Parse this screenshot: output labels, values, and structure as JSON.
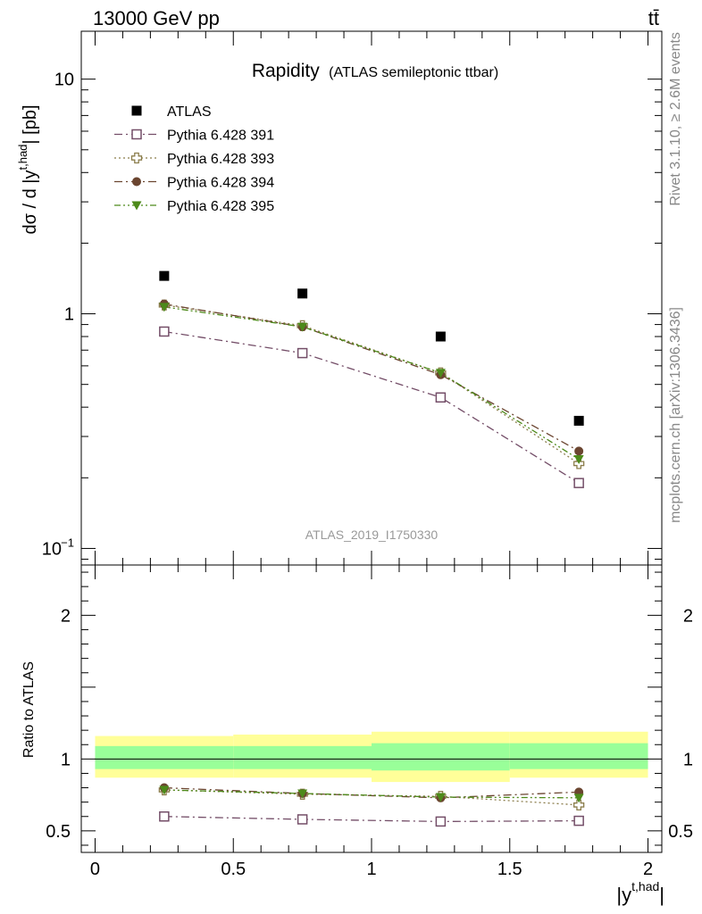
{
  "header": {
    "energy_label": "13000 GeV pp",
    "process_label": "tt̄"
  },
  "side_labels": {
    "rivet": "Rivet 3.1.10, ≥ 2.6M events",
    "source": "mcplots.cern.ch [arXiv:1306.3436]"
  },
  "chart_data": [
    {
      "type": "line",
      "title": "Rapidity",
      "subtitle": "(ATLAS semileptonic ttbar)",
      "watermark": "ATLAS_2019_I1750330",
      "ylabel": "dσ / d |y^{t,had}| [pb]",
      "xlabel": "|y^{t,had}|",
      "yscale": "log",
      "ylim": [
        0.085,
        16
      ],
      "xlim": [
        -0.05,
        2.05
      ],
      "yticks": [
        {
          "value": 0.1,
          "base": "10",
          "exp": "−1"
        },
        {
          "value": 1,
          "label": "1"
        },
        {
          "value": 10,
          "label": "10"
        }
      ],
      "x": [
        0.25,
        0.75,
        1.25,
        1.75
      ],
      "series": [
        {
          "name": "ATLAS",
          "values": [
            1.45,
            1.22,
            0.8,
            0.35
          ],
          "color": "#000000",
          "marker": "filled-square",
          "line": "none"
        },
        {
          "name": "Pythia 6.428 391",
          "values": [
            0.84,
            0.68,
            0.44,
            0.19
          ],
          "color": "#744e68",
          "marker": "open-square",
          "line": "dash-dot"
        },
        {
          "name": "Pythia 6.428 393",
          "values": [
            1.09,
            0.89,
            0.56,
            0.23
          ],
          "color": "#8b7d4b",
          "marker": "open-cross",
          "line": "dotted"
        },
        {
          "name": "Pythia 6.428 394",
          "values": [
            1.1,
            0.88,
            0.55,
            0.26
          ],
          "color": "#6b4530",
          "marker": "filled-circle",
          "line": "dash-dot"
        },
        {
          "name": "Pythia 6.428 395",
          "values": [
            1.07,
            0.88,
            0.56,
            0.24
          ],
          "color": "#4d8a1a",
          "marker": "filled-triangle-down",
          "line": "dash-dot-dot"
        }
      ]
    },
    {
      "type": "line",
      "ylabel": "Ratio to ATLAS",
      "xlabel": "|y^{t,had}|",
      "ylim": [
        0.35,
        2.35
      ],
      "xlim": [
        -0.05,
        2.05
      ],
      "yticks": [
        0.5,
        1,
        2
      ],
      "xticks": [
        0,
        0.5,
        1,
        1.5,
        2
      ],
      "xtick_labels": [
        "0",
        "0.5",
        "1",
        "1.5",
        "2"
      ],
      "bins": [
        [
          0,
          0.5
        ],
        [
          0.5,
          1.0
        ],
        [
          1.0,
          1.5
        ],
        [
          1.5,
          2.0
        ]
      ],
      "band_outer": [
        [
          0.87,
          1.16
        ],
        [
          0.87,
          1.17
        ],
        [
          0.84,
          1.19
        ],
        [
          0.87,
          1.19
        ]
      ],
      "band_inner": [
        [
          0.93,
          1.09
        ],
        [
          0.93,
          1.09
        ],
        [
          0.92,
          1.11
        ],
        [
          0.93,
          1.11
        ]
      ],
      "band_colors": {
        "outer": "#ffff99",
        "inner": "#99ff99"
      },
      "x": [
        0.25,
        0.75,
        1.25,
        1.75
      ],
      "series": [
        {
          "name": "Pythia 6.428 391",
          "values": [
            0.6,
            0.58,
            0.565,
            0.57
          ],
          "color": "#744e68",
          "marker": "open-square",
          "line": "dash-dot"
        },
        {
          "name": "Pythia 6.428 393",
          "values": [
            0.785,
            0.755,
            0.74,
            0.68
          ],
          "color": "#8b7d4b",
          "marker": "open-cross",
          "line": "dotted"
        },
        {
          "name": "Pythia 6.428 394",
          "values": [
            0.8,
            0.76,
            0.73,
            0.77
          ],
          "color": "#6b4530",
          "marker": "filled-circle",
          "line": "dash-dot"
        },
        {
          "name": "Pythia 6.428 395",
          "values": [
            0.785,
            0.76,
            0.735,
            0.73
          ],
          "color": "#4d8a1a",
          "marker": "filled-triangle-down",
          "line": "dash-dot-dot"
        }
      ]
    }
  ]
}
